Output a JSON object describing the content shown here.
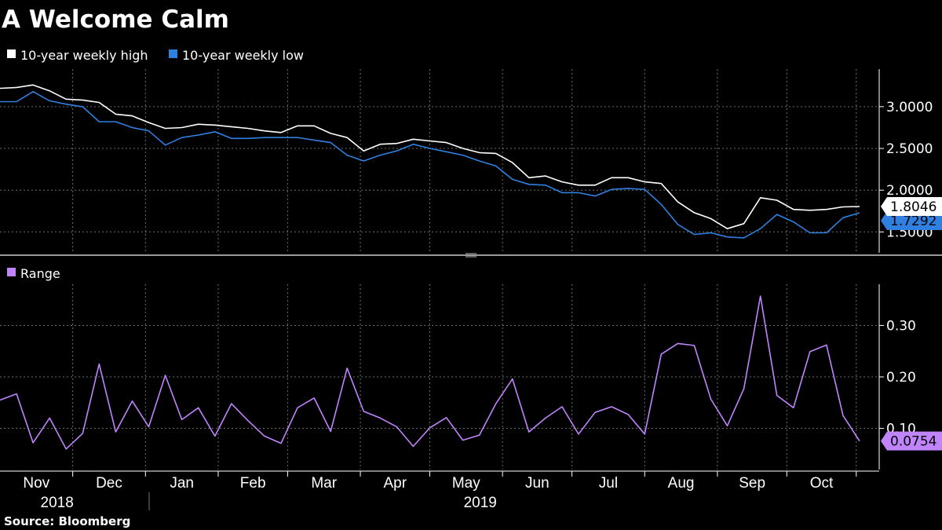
{
  "chart_data": [
    {
      "type": "line",
      "title": "A Welcome Calm",
      "series": [
        {
          "name": "10-year weekly high",
          "color": "#ffffff",
          "values": [
            3.22,
            3.23,
            3.26,
            3.19,
            3.09,
            3.08,
            3.05,
            2.91,
            2.89,
            2.81,
            2.74,
            2.75,
            2.79,
            2.78,
            2.76,
            2.74,
            2.71,
            2.69,
            2.77,
            2.77,
            2.68,
            2.63,
            2.47,
            2.55,
            2.56,
            2.61,
            2.59,
            2.57,
            2.5,
            2.45,
            2.44,
            2.33,
            2.15,
            2.17,
            2.1,
            2.06,
            2.06,
            2.15,
            2.15,
            2.1,
            2.08,
            1.86,
            1.73,
            1.66,
            1.54,
            1.6,
            1.91,
            1.88,
            1.77,
            1.76,
            1.77,
            1.8,
            1.8046
          ]
        },
        {
          "name": "10-year weekly low",
          "color": "#2f80e0",
          "values": [
            3.06,
            3.06,
            3.18,
            3.07,
            3.03,
            3.0,
            2.82,
            2.82,
            2.75,
            2.71,
            2.54,
            2.63,
            2.66,
            2.7,
            2.62,
            2.62,
            2.63,
            2.63,
            2.63,
            2.6,
            2.57,
            2.42,
            2.35,
            2.42,
            2.47,
            2.55,
            2.5,
            2.46,
            2.42,
            2.35,
            2.29,
            2.13,
            2.07,
            2.06,
            1.97,
            1.97,
            1.93,
            2.01,
            2.02,
            2.01,
            1.83,
            1.59,
            1.47,
            1.49,
            1.44,
            1.43,
            1.54,
            1.71,
            1.62,
            1.49,
            1.49,
            1.67,
            1.7292
          ]
        }
      ],
      "ylim": [
        1.25,
        3.45
      ],
      "yticks": [
        1.5,
        2.0,
        2.5,
        3.0
      ],
      "ytick_labels": [
        "1.5000",
        "2.0000",
        "2.5000",
        "3.0000"
      ],
      "last_value_labels": [
        {
          "series": "10-year weekly high",
          "label": "1.8046"
        },
        {
          "series": "10-year weekly low",
          "label": "1.7292"
        }
      ]
    },
    {
      "type": "line",
      "series": [
        {
          "name": "Range",
          "color": "#c084fc",
          "values": [
            0.155,
            0.167,
            0.072,
            0.12,
            0.06,
            0.09,
            0.225,
            0.093,
            0.153,
            0.103,
            0.203,
            0.117,
            0.14,
            0.085,
            0.148,
            0.115,
            0.085,
            0.071,
            0.14,
            0.159,
            0.094,
            0.217,
            0.133,
            0.12,
            0.103,
            0.065,
            0.101,
            0.121,
            0.077,
            0.087,
            0.148,
            0.196,
            0.093,
            0.12,
            0.142,
            0.089,
            0.131,
            0.142,
            0.127,
            0.089,
            0.244,
            0.265,
            0.261,
            0.157,
            0.105,
            0.177,
            0.357,
            0.164,
            0.14,
            0.249,
            0.262,
            0.125,
            0.0754
          ]
        }
      ],
      "ylim": [
        0.02,
        0.38
      ],
      "yticks": [
        0.1,
        0.2,
        0.3
      ],
      "ytick_labels": [
        "0.10",
        "0.20",
        "0.30"
      ],
      "last_value_labels": [
        {
          "series": "Range",
          "label": "0.0754"
        }
      ]
    }
  ],
  "x_axis": {
    "months": [
      "Nov",
      "Dec",
      "Jan",
      "Feb",
      "Mar",
      "Apr",
      "May",
      "Jun",
      "Jul",
      "Aug",
      "Sep",
      "Oct"
    ],
    "month_start_index": [
      0,
      4.4,
      8.8,
      13.2,
      17.4,
      21.8,
      26.0,
      30.4,
      34.6,
      39.0,
      43.4,
      47.6,
      51.8
    ],
    "years": [
      {
        "label": "2018",
        "center_index": 4.4
      },
      {
        "label": "2019",
        "center_index": 30.0
      }
    ]
  },
  "source": "Source: Bloomberg"
}
